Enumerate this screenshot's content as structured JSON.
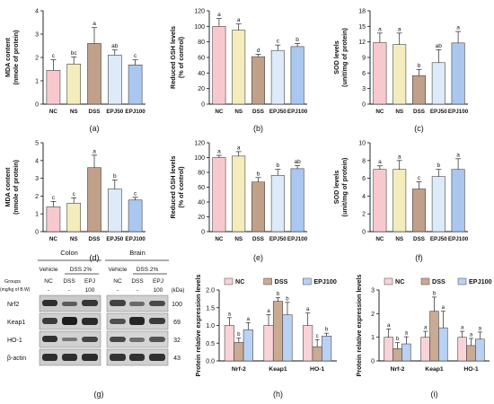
{
  "colors": {
    "NC": "#f7c9cf",
    "NS": "#f3ecbd",
    "DSS": "#c1a08a",
    "EPJ50": "#ddeaf8",
    "EPJ100": "#a9c7ef",
    "bar_stroke": "#444444",
    "wb_NC": "#f8d3d7",
    "wb_DSS": "#c9aa92",
    "wb_EPJ100": "#b9d2f3"
  },
  "chart_data": [
    {
      "id": "a",
      "type": "bar",
      "panel_label": "(a)",
      "ylabel": "MDA content\n(nmole of protein)",
      "categories": [
        "NC",
        "NS",
        "DSS",
        "EPJ50",
        "EPJ100"
      ],
      "values": [
        1.45,
        1.72,
        2.6,
        2.1,
        1.68
      ],
      "errors": [
        0.45,
        0.3,
        0.68,
        0.22,
        0.22
      ],
      "letters": [
        "c",
        "bc",
        "a",
        "ab",
        "c"
      ],
      "ylim": [
        0,
        4
      ],
      "yticks": [
        0,
        1,
        2,
        3,
        4
      ],
      "ytick_labels": [
        "0",
        "1",
        "2",
        "3",
        "4"
      ]
    },
    {
      "id": "b",
      "type": "bar",
      "panel_label": "(b)",
      "ylabel": "Reduced GSH levels\n(% of control)",
      "categories": [
        "NC",
        "NS",
        "DSS",
        "EPJ50",
        "EPJ100"
      ],
      "values": [
        100,
        95,
        61,
        69,
        74
      ],
      "errors": [
        10,
        8,
        3,
        7,
        4
      ],
      "letters": [
        "a",
        "a",
        "d",
        "c",
        "b"
      ],
      "ylim": [
        0,
        120
      ],
      "yticks": [
        0,
        20,
        40,
        60,
        80,
        100,
        120
      ],
      "ytick_labels": [
        "0",
        "20",
        "40",
        "60",
        "80",
        "100",
        "120"
      ]
    },
    {
      "id": "c",
      "type": "bar",
      "panel_label": "(c)",
      "ylabel": "SOD levels\n(unit/mg of protein)",
      "categories": [
        "NC",
        "NS",
        "DSS",
        "EPJ50",
        "EPJ100"
      ],
      "values": [
        11.9,
        11.5,
        5.5,
        8.0,
        11.8
      ],
      "errors": [
        1.8,
        2.2,
        1.2,
        2.5,
        2.2
      ],
      "letters": [
        "a",
        "a",
        "b",
        "ab",
        "a"
      ],
      "ylim": [
        0,
        18
      ],
      "yticks": [
        0,
        3,
        6,
        9,
        12,
        15,
        18
      ],
      "ytick_labels": [
        "0",
        "3",
        "6",
        "9",
        "12",
        "15",
        "18"
      ]
    },
    {
      "id": "d",
      "type": "bar",
      "panel_label": "(d)",
      "ylabel": "MDA content\n(nmole of protein)",
      "categories": [
        "NC",
        "NS",
        "DSS",
        "EPJ50",
        "EPJ100"
      ],
      "values": [
        1.4,
        1.6,
        3.6,
        2.4,
        1.78
      ],
      "errors": [
        0.3,
        0.3,
        0.7,
        0.5,
        0.15
      ],
      "letters": [
        "c",
        "c",
        "a",
        "b",
        "c"
      ],
      "ylim": [
        0,
        5
      ],
      "yticks": [
        0,
        1,
        2,
        3,
        4,
        5
      ],
      "ytick_labels": [
        "0",
        "1",
        "2",
        "3",
        "4",
        "5"
      ]
    },
    {
      "id": "e",
      "type": "bar",
      "panel_label": "(e)",
      "ylabel": "Reduced GSH levels\n(% of control)",
      "categories": [
        "NC",
        "NS",
        "DSS",
        "EPJ50",
        "EPJ100"
      ],
      "values": [
        100,
        102,
        67,
        76,
        85
      ],
      "errors": [
        3,
        6,
        6,
        8,
        4
      ],
      "letters": [
        "a",
        "a",
        "b",
        "b",
        "ab"
      ],
      "ylim": [
        0,
        120
      ],
      "yticks": [
        0,
        20,
        40,
        60,
        80,
        100,
        120
      ],
      "ytick_labels": [
        "0",
        "20",
        "40",
        "60",
        "80",
        "100",
        "120"
      ]
    },
    {
      "id": "f",
      "type": "bar",
      "panel_label": "(f)",
      "ylabel": "SOD levels\n(unit/mg of protein)",
      "categories": [
        "NC",
        "NS",
        "DSS",
        "EPJ50",
        "EPJ100"
      ],
      "values": [
        7.0,
        7.0,
        4.8,
        6.2,
        7.0
      ],
      "errors": [
        0.4,
        1.0,
        0.8,
        0.8,
        1.2
      ],
      "letters": [
        "a",
        "a",
        "c",
        "b",
        "a"
      ],
      "ylim": [
        0,
        10
      ],
      "yticks": [
        0,
        2,
        4,
        6,
        8,
        10
      ],
      "ytick_labels": [
        "0",
        "2",
        "4",
        "6",
        "8",
        "10"
      ]
    },
    {
      "id": "h",
      "type": "bar",
      "panel_label": "(h)",
      "ylabel": "Protein relative expression levels",
      "categories": [
        "Nrf-2",
        "Keap1",
        "HO-1"
      ],
      "series": [
        {
          "name": "NC",
          "values": [
            1.0,
            1.0,
            1.0
          ],
          "errors": [
            0.22,
            0.3,
            0.35
          ],
          "letters": [
            "a",
            "a",
            "a"
          ]
        },
        {
          "name": "DSS",
          "values": [
            0.52,
            1.68,
            0.4
          ],
          "errors": [
            0.12,
            0.1,
            0.2
          ],
          "letters": [
            "b",
            "b",
            "c"
          ]
        },
        {
          "name": "EPJ100",
          "values": [
            0.88,
            1.3,
            0.7
          ],
          "errors": [
            0.2,
            0.35,
            0.08
          ],
          "letters": [
            "a",
            "b",
            "b"
          ]
        }
      ],
      "ylim": [
        0,
        2.0
      ],
      "yticks": [
        0,
        0.5,
        1.0,
        1.5,
        2.0
      ],
      "ytick_labels": [
        "0.0",
        "0.5",
        "1.0",
        "1.5",
        "2.0"
      ]
    },
    {
      "id": "i",
      "type": "bar",
      "panel_label": "(i)",
      "ylabel": "Protein relative expression levels",
      "categories": [
        "Nrf-2",
        "Keap1",
        "HO-1"
      ],
      "series": [
        {
          "name": "NC",
          "values": [
            1.0,
            1.0,
            1.0
          ],
          "errors": [
            0.35,
            0.25,
            0.25
          ],
          "letters": [
            "a",
            "a",
            "a"
          ]
        },
        {
          "name": "DSS",
          "values": [
            0.52,
            2.1,
            0.65
          ],
          "errors": [
            0.25,
            0.6,
            0.3
          ],
          "letters": [
            "b",
            "b",
            "a"
          ]
        },
        {
          "name": "EPJ100",
          "values": [
            0.72,
            1.4,
            0.92
          ],
          "errors": [
            0.3,
            0.7,
            0.3
          ],
          "letters": [
            "a",
            "a",
            "a"
          ]
        }
      ],
      "ylim": [
        0,
        3
      ],
      "yticks": [
        0,
        1,
        2,
        3
      ],
      "ytick_labels": [
        "0",
        "1",
        "2",
        "3"
      ]
    }
  ],
  "blot": {
    "panel_label": "(g)",
    "tissue_colon": "Colon",
    "tissue_brain": "Brain",
    "vehicle_label": "Vehicle",
    "dss_label": "DSS 2%",
    "groups_label": "Groups",
    "dose_label": "(mg/kg of B.W)",
    "kda_label": "(kDa)",
    "lanes": [
      "NC",
      "DSS",
      "EPJ"
    ],
    "dose_values": [
      "-",
      "-",
      "100"
    ],
    "proteins": [
      {
        "name": "Nrf2",
        "kda": "100"
      },
      {
        "name": "Keap1",
        "kda": "69"
      },
      {
        "name": "HO-1",
        "kda": "32"
      },
      {
        "name": "β-actin",
        "kda": "43"
      }
    ]
  }
}
